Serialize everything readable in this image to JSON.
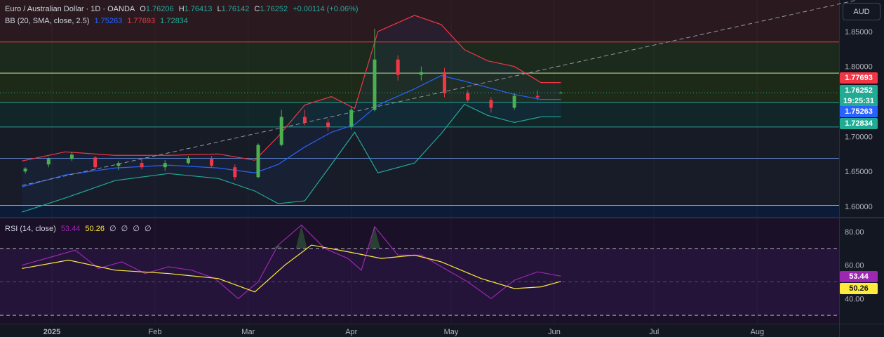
{
  "header": {
    "title": "Euro / Australian Dollar · 1D · OANDA",
    "open_key": "O",
    "open": "1.76206",
    "high_key": "H",
    "high": "1.76413",
    "low_key": "L",
    "low": "1.76142",
    "close_key": "C",
    "close": "1.76252",
    "change": "+0.00114 (+0.06%)"
  },
  "bb_legend": {
    "name": "BB (20, SMA, close, 2.5)",
    "basis": "1.75263",
    "upper": "1.77693",
    "lower": "1.72834"
  },
  "rsi_legend": {
    "name": "RSI (14, close)",
    "rsi": "53.44",
    "ma": "50.26",
    "slots": [
      "∅",
      "∅",
      "∅",
      "∅"
    ]
  },
  "currency": "AUD",
  "price_tags": {
    "upper": "1.77693",
    "last": "1.76252",
    "countdown": "19:25:31",
    "basis": "1.75263",
    "lower": "1.72834",
    "rsi": "53.44",
    "rsi_ma": "50.26"
  },
  "colors": {
    "up": "#4caf50",
    "down": "#f23645",
    "bb_basis": "#2962ff",
    "bb_upper": "#f23645",
    "bb_lower": "#22ab94",
    "rsi": "#9c27b0",
    "rsi_ma": "#ffeb3b"
  },
  "chart_data": [
    {
      "type": "candlestick",
      "title": "Euro / Australian Dollar · 1D · OANDA",
      "x_tick_labels": [
        "2025",
        "Feb",
        "Mar",
        "Apr",
        "May",
        "Jun",
        "Jul",
        "Aug"
      ],
      "x_tick_dates": [
        "2025-01-01",
        "2025-02-01",
        "2025-03-01",
        "2025-04-01",
        "2025-05-01",
        "2025-06-01",
        "2025-07-01",
        "2025-08-01"
      ],
      "y_tick_labels": [
        "1.60000",
        "1.65000",
        "1.70000",
        "1.75000",
        "1.80000",
        "1.85000"
      ],
      "ylim": [
        1.585,
        1.895
      ],
      "horizontal_levels": [
        1.835,
        1.7905,
        1.7487,
        1.7135,
        1.6688,
        1.6015
      ],
      "trendline": {
        "from": [
          "2024-12-23",
          1.63
        ],
        "to": [
          "2025-08-31",
          1.895
        ]
      },
      "candles": [
        {
          "date": "2024-12-24",
          "o": 1.65,
          "h": 1.656,
          "l": 1.647,
          "c": 1.654
        },
        {
          "date": "2024-12-31",
          "o": 1.66,
          "h": 1.67,
          "l": 1.656,
          "c": 1.668
        },
        {
          "date": "2025-01-07",
          "o": 1.668,
          "h": 1.678,
          "l": 1.665,
          "c": 1.674
        },
        {
          "date": "2025-01-14",
          "o": 1.67,
          "h": 1.672,
          "l": 1.652,
          "c": 1.656
        },
        {
          "date": "2025-01-21",
          "o": 1.658,
          "h": 1.665,
          "l": 1.652,
          "c": 1.662
        },
        {
          "date": "2025-01-28",
          "o": 1.662,
          "h": 1.669,
          "l": 1.653,
          "c": 1.656
        },
        {
          "date": "2025-02-04",
          "o": 1.656,
          "h": 1.666,
          "l": 1.651,
          "c": 1.662
        },
        {
          "date": "2025-02-11",
          "o": 1.662,
          "h": 1.672,
          "l": 1.66,
          "c": 1.669
        },
        {
          "date": "2025-02-18",
          "o": 1.668,
          "h": 1.672,
          "l": 1.656,
          "c": 1.658
        },
        {
          "date": "2025-02-25",
          "o": 1.656,
          "h": 1.66,
          "l": 1.638,
          "c": 1.642
        },
        {
          "date": "2025-03-04",
          "o": 1.642,
          "h": 1.69,
          "l": 1.64,
          "c": 1.688
        },
        {
          "date": "2025-03-11",
          "o": 1.688,
          "h": 1.738,
          "l": 1.686,
          "c": 1.728
        },
        {
          "date": "2025-03-18",
          "o": 1.728,
          "h": 1.738,
          "l": 1.716,
          "c": 1.72
        },
        {
          "date": "2025-03-25",
          "o": 1.72,
          "h": 1.725,
          "l": 1.708,
          "c": 1.714
        },
        {
          "date": "2025-04-01",
          "o": 1.714,
          "h": 1.742,
          "l": 1.71,
          "c": 1.738
        },
        {
          "date": "2025-04-08",
          "o": 1.738,
          "h": 1.854,
          "l": 1.736,
          "c": 1.81
        },
        {
          "date": "2025-04-15",
          "o": 1.81,
          "h": 1.816,
          "l": 1.78,
          "c": 1.788
        },
        {
          "date": "2025-04-22",
          "o": 1.788,
          "h": 1.8,
          "l": 1.78,
          "c": 1.792
        },
        {
          "date": "2025-04-29",
          "o": 1.792,
          "h": 1.798,
          "l": 1.756,
          "c": 1.762
        },
        {
          "date": "2025-05-06",
          "o": 1.762,
          "h": 1.766,
          "l": 1.748,
          "c": 1.752
        },
        {
          "date": "2025-05-13",
          "o": 1.752,
          "h": 1.756,
          "l": 1.734,
          "c": 1.741
        },
        {
          "date": "2025-05-20",
          "o": 1.741,
          "h": 1.762,
          "l": 1.738,
          "c": 1.758
        },
        {
          "date": "2025-05-27",
          "o": 1.758,
          "h": 1.766,
          "l": 1.752,
          "c": 1.756
        },
        {
          "date": "2025-06-03",
          "o": 1.762,
          "h": 1.7641,
          "l": 1.7614,
          "c": 1.7625
        }
      ],
      "series": [
        {
          "name": "BB (20, SMA, close, 2.5) upper",
          "points": [
            [
              "2024-12-23",
              1.665
            ],
            [
              "2025-01-05",
              1.678
            ],
            [
              "2025-01-20",
              1.673
            ],
            [
              "2025-02-05",
              1.673
            ],
            [
              "2025-02-20",
              1.675
            ],
            [
              "2025-03-03",
              1.666
            ],
            [
              "2025-03-10",
              1.7
            ],
            [
              "2025-03-18",
              1.745
            ],
            [
              "2025-03-26",
              1.757
            ],
            [
              "2025-04-02",
              1.74
            ],
            [
              "2025-04-09",
              1.85
            ],
            [
              "2025-04-20",
              1.873
            ],
            [
              "2025-04-28",
              1.86
            ],
            [
              "2025-05-05",
              1.824
            ],
            [
              "2025-05-12",
              1.808
            ],
            [
              "2025-05-20",
              1.8
            ],
            [
              "2025-05-28",
              1.777
            ],
            [
              "2025-06-03",
              1.777
            ]
          ]
        },
        {
          "name": "BB (20, SMA, close, 2.5) basis",
          "points": [
            [
              "2024-12-23",
              1.628
            ],
            [
              "2025-01-05",
              1.645
            ],
            [
              "2025-01-20",
              1.655
            ],
            [
              "2025-02-05",
              1.659
            ],
            [
              "2025-02-20",
              1.655
            ],
            [
              "2025-03-03",
              1.648
            ],
            [
              "2025-03-10",
              1.66
            ],
            [
              "2025-03-18",
              1.685
            ],
            [
              "2025-03-26",
              1.706
            ],
            [
              "2025-04-02",
              1.717
            ],
            [
              "2025-04-09",
              1.745
            ],
            [
              "2025-04-20",
              1.768
            ],
            [
              "2025-04-28",
              1.787
            ],
            [
              "2025-05-05",
              1.779
            ],
            [
              "2025-05-12",
              1.77
            ],
            [
              "2025-05-20",
              1.76
            ],
            [
              "2025-05-28",
              1.753
            ],
            [
              "2025-06-03",
              1.753
            ]
          ]
        },
        {
          "name": "BB (20, SMA, close, 2.5) lower",
          "points": [
            [
              "2024-12-23",
              1.592
            ],
            [
              "2025-01-05",
              1.612
            ],
            [
              "2025-01-20",
              1.637
            ],
            [
              "2025-02-05",
              1.647
            ],
            [
              "2025-02-20",
              1.64
            ],
            [
              "2025-03-03",
              1.622
            ],
            [
              "2025-03-10",
              1.604
            ],
            [
              "2025-03-18",
              1.608
            ],
            [
              "2025-03-26",
              1.66
            ],
            [
              "2025-04-02",
              1.706
            ],
            [
              "2025-04-09",
              1.648
            ],
            [
              "2025-04-20",
              1.662
            ],
            [
              "2025-04-28",
              1.704
            ],
            [
              "2025-05-05",
              1.746
            ],
            [
              "2025-05-12",
              1.73
            ],
            [
              "2025-05-20",
              1.72
            ],
            [
              "2025-05-28",
              1.728
            ],
            [
              "2025-06-03",
              1.728
            ]
          ]
        }
      ]
    },
    {
      "type": "line",
      "title": "RSI (14, close)",
      "ylim": [
        25,
        88
      ],
      "y_tick_labels": [
        "40.00",
        "60.00",
        "80.00"
      ],
      "levels": [
        70,
        50,
        30
      ],
      "series": [
        {
          "name": "RSI (14, close)",
          "points": [
            [
              "2024-12-23",
              60
            ],
            [
              "2025-01-01",
              65
            ],
            [
              "2025-01-08",
              69
            ],
            [
              "2025-01-15",
              58
            ],
            [
              "2025-01-22",
              62
            ],
            [
              "2025-01-29",
              55
            ],
            [
              "2025-02-05",
              59
            ],
            [
              "2025-02-12",
              57
            ],
            [
              "2025-02-19",
              52
            ],
            [
              "2025-02-26",
              40
            ],
            [
              "2025-03-04",
              50
            ],
            [
              "2025-03-10",
              72
            ],
            [
              "2025-03-17",
              84
            ],
            [
              "2025-03-24",
              70
            ],
            [
              "2025-03-31",
              64
            ],
            [
              "2025-04-04",
              57
            ],
            [
              "2025-04-08",
              83
            ],
            [
              "2025-04-15",
              66
            ],
            [
              "2025-04-22",
              66
            ],
            [
              "2025-04-29",
              58
            ],
            [
              "2025-05-06",
              50
            ],
            [
              "2025-05-13",
              40
            ],
            [
              "2025-05-20",
              51
            ],
            [
              "2025-05-27",
              56
            ],
            [
              "2025-06-03",
              53.44
            ]
          ]
        },
        {
          "name": "RSI-based MA",
          "points": [
            [
              "2024-12-23",
              58
            ],
            [
              "2025-01-06",
              63
            ],
            [
              "2025-01-20",
              57
            ],
            [
              "2025-02-05",
              55
            ],
            [
              "2025-02-20",
              52
            ],
            [
              "2025-03-03",
              44
            ],
            [
              "2025-03-12",
              60
            ],
            [
              "2025-03-20",
              72
            ],
            [
              "2025-03-31",
              68
            ],
            [
              "2025-04-10",
              64
            ],
            [
              "2025-04-20",
              66
            ],
            [
              "2025-04-28",
              62
            ],
            [
              "2025-05-10",
              52
            ],
            [
              "2025-05-20",
              46
            ],
            [
              "2025-05-28",
              47
            ],
            [
              "2025-06-03",
              50.26
            ]
          ]
        }
      ]
    }
  ]
}
